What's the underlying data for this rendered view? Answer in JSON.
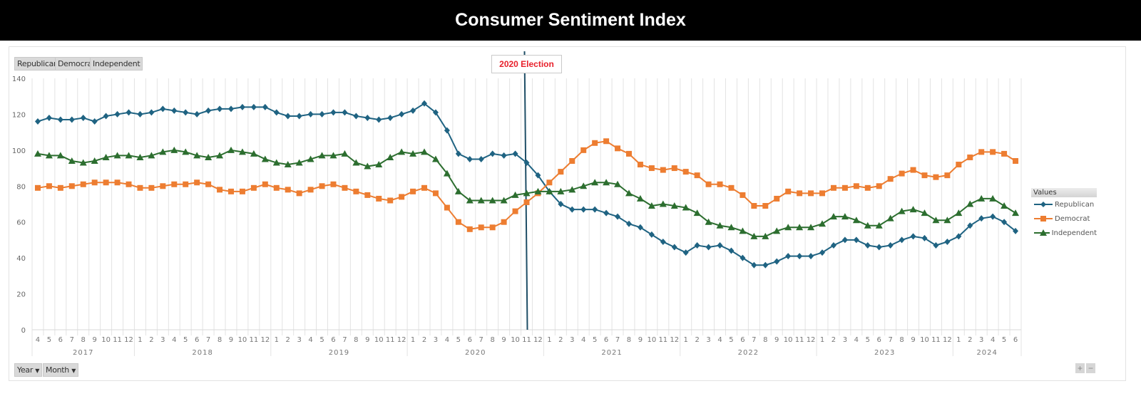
{
  "header": {
    "title": "Consumer Sentiment Index"
  },
  "filters": {
    "series_buttons": [
      "Republican",
      "Democrat",
      "Independent"
    ],
    "axis_buttons": [
      "Year",
      "Month"
    ],
    "zoom_in": "+",
    "zoom_out": "−"
  },
  "annotation": {
    "label": "2020 Election",
    "at": "2020-11"
  },
  "legend": {
    "title": "Values"
  },
  "colors": {
    "Republican": "#1f6382",
    "Democrat": "#ed7d31",
    "Independent": "#2c6e2f",
    "annotation_text": "#e8202b",
    "election_line": "#1f4e66"
  },
  "chart_data": {
    "type": "line",
    "title": "Consumer Sentiment Index",
    "ylim": [
      0,
      140
    ],
    "yticks": [
      0,
      20,
      40,
      60,
      80,
      100,
      120,
      140
    ],
    "grid": "vertical lines per month",
    "legend_placement": "right",
    "years": [
      {
        "year": "2017",
        "months": [
          4,
          5,
          6,
          7,
          8,
          9,
          10,
          11,
          12
        ]
      },
      {
        "year": "2018",
        "months": [
          1,
          2,
          3,
          4,
          5,
          6,
          7,
          8,
          9,
          10,
          11,
          12
        ]
      },
      {
        "year": "2019",
        "months": [
          1,
          2,
          3,
          4,
          5,
          6,
          7,
          8,
          9,
          10,
          11,
          12
        ]
      },
      {
        "year": "2020",
        "months": [
          1,
          2,
          3,
          4,
          5,
          6,
          7,
          8,
          9,
          10,
          11,
          12
        ]
      },
      {
        "year": "2021",
        "months": [
          1,
          2,
          3,
          4,
          5,
          6,
          7,
          8,
          9,
          10,
          11,
          12
        ]
      },
      {
        "year": "2022",
        "months": [
          1,
          2,
          3,
          4,
          5,
          6,
          7,
          8,
          9,
          10,
          11,
          12
        ]
      },
      {
        "year": "2023",
        "months": [
          1,
          2,
          3,
          4,
          5,
          6,
          7,
          8,
          9,
          10,
          11,
          12
        ]
      },
      {
        "year": "2024",
        "months": [
          1,
          2,
          3,
          4,
          5,
          6
        ]
      }
    ],
    "series": [
      {
        "name": "Republican",
        "marker": "diamond",
        "values": [
          116,
          118,
          117,
          117,
          118,
          116,
          119,
          120,
          121,
          120,
          121,
          123,
          122,
          121,
          120,
          122,
          123,
          123,
          124,
          124,
          124,
          121,
          119,
          119,
          120,
          120,
          121,
          121,
          119,
          118,
          117,
          118,
          120,
          122,
          126,
          121,
          111,
          98,
          95,
          95,
          98,
          97,
          98,
          93,
          86,
          77,
          70,
          67,
          67,
          67,
          65,
          63,
          59,
          57,
          53,
          49,
          46,
          43,
          47,
          46,
          47,
          44,
          40,
          36,
          36,
          38,
          41,
          41,
          41,
          43,
          47,
          50,
          50,
          47,
          46,
          47,
          50,
          52,
          51,
          47,
          49,
          52,
          58,
          62,
          63,
          60,
          55
        ]
      },
      {
        "name": "Democrat",
        "marker": "square",
        "values": [
          79,
          80,
          79,
          80,
          81,
          82,
          82,
          82,
          81,
          79,
          79,
          80,
          81,
          81,
          82,
          81,
          78,
          77,
          77,
          79,
          81,
          79,
          78,
          76,
          78,
          80,
          81,
          79,
          77,
          75,
          73,
          72,
          74,
          77,
          79,
          76,
          68,
          60,
          56,
          57,
          57,
          60,
          66,
          71,
          76,
          82,
          88,
          94,
          100,
          104,
          105,
          101,
          98,
          92,
          90,
          89,
          90,
          88,
          86,
          81,
          81,
          79,
          75,
          69,
          69,
          73,
          77,
          76,
          76,
          76,
          79,
          79,
          80,
          79,
          80,
          84,
          87,
          89,
          86,
          85,
          86,
          92,
          96,
          99,
          99,
          98,
          94
        ]
      },
      {
        "name": "Independent",
        "marker": "triangle",
        "values": [
          98,
          97,
          97,
          94,
          93,
          94,
          96,
          97,
          97,
          96,
          97,
          99,
          100,
          99,
          97,
          96,
          97,
          100,
          99,
          98,
          95,
          93,
          92,
          93,
          95,
          97,
          97,
          98,
          93,
          91,
          92,
          96,
          99,
          98,
          99,
          95,
          87,
          77,
          72,
          72,
          72,
          72,
          75,
          76,
          77,
          77,
          77,
          78,
          80,
          82,
          82,
          81,
          76,
          73,
          69,
          70,
          69,
          68,
          65,
          60,
          58,
          57,
          55,
          52,
          52,
          55,
          57,
          57,
          57,
          59,
          63,
          63,
          61,
          58,
          58,
          62,
          66,
          67,
          65,
          61,
          61,
          65,
          70,
          73,
          73,
          69,
          65
        ]
      }
    ]
  }
}
